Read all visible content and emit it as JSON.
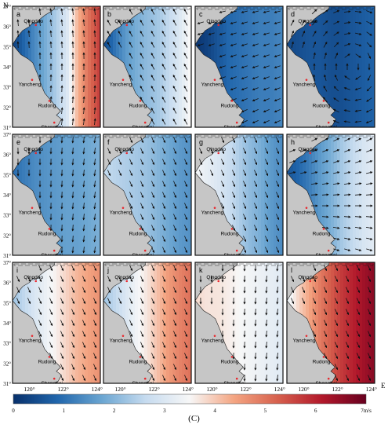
{
  "axes": {
    "north_label": "N",
    "east_label": "E",
    "lat_ticks": [
      "37°",
      "36°",
      "35°",
      "34°",
      "33°",
      "32°",
      "31°"
    ],
    "lon_ticks": [
      "120°",
      "122°",
      "124°"
    ],
    "lat_range": [
      31,
      37
    ],
    "lon_range": [
      119,
      124.2
    ]
  },
  "places": [
    {
      "name": "Qingdao",
      "lon": 120.38,
      "lat": 36.07
    },
    {
      "name": "Yancheng",
      "lon": 120.16,
      "lat": 33.35
    },
    {
      "name": "Rudong",
      "lon": 121.18,
      "lat": 32.31
    },
    {
      "name": "Shanghai",
      "lon": 121.47,
      "lat": 31.23
    }
  ],
  "panels": [
    {
      "label": "a",
      "speed": [
        0.35,
        0.9,
        1.4,
        1.9,
        2.4,
        3.0,
        4.2,
        5.0,
        5.6
      ],
      "flow": "N"
    },
    {
      "label": "b",
      "speed": [
        0.5,
        1.1,
        1.6,
        1.9,
        2.1,
        2.3,
        2.6,
        3.0,
        3.5
      ],
      "flow": "NW"
    },
    {
      "label": "c",
      "speed": [
        0.1,
        0.3,
        0.6,
        0.9,
        1.0,
        1.1,
        1.2,
        1.2,
        1.3
      ],
      "flow": "W"
    },
    {
      "label": "d",
      "speed": [
        0.4,
        0.5,
        0.6,
        0.6,
        0.5,
        0.5,
        0.6,
        0.7,
        0.8
      ],
      "flow": "CYC"
    },
    {
      "label": "e",
      "speed": [
        1.0,
        1.2,
        1.4,
        1.5,
        1.6,
        1.7,
        1.7,
        1.8,
        1.9
      ],
      "flow": "S"
    },
    {
      "label": "f",
      "speed": [
        2.6,
        2.5,
        2.4,
        2.3,
        2.2,
        2.0,
        1.8,
        1.6,
        1.5
      ],
      "flow": "SE"
    },
    {
      "label": "g",
      "speed": [
        3.4,
        3.2,
        3.0,
        2.7,
        2.4,
        2.1,
        1.9,
        1.6,
        1.4
      ],
      "flow": "SE"
    },
    {
      "label": "h",
      "speed": [
        0.6,
        0.9,
        1.2,
        1.6,
        1.9,
        2.3,
        2.6,
        2.9,
        3.1
      ],
      "flow": "NE"
    },
    {
      "label": "i",
      "speed": [
        2.3,
        2.6,
        3.0,
        3.3,
        3.6,
        3.9,
        4.2,
        4.4,
        4.6
      ],
      "flow": "SE"
    },
    {
      "label": "j",
      "speed": [
        2.3,
        2.6,
        3.0,
        3.4,
        3.7,
        4.1,
        4.5,
        4.8,
        5.0
      ],
      "flow": "SE"
    },
    {
      "label": "k",
      "speed": [
        3.8,
        3.7,
        3.7,
        3.6,
        3.5,
        3.4,
        3.3,
        3.2,
        3.1
      ],
      "flow": "S"
    },
    {
      "label": "l",
      "speed": [
        3.3,
        3.9,
        4.4,
        4.9,
        5.3,
        5.7,
        6.0,
        6.3,
        6.6
      ],
      "flow": "SE"
    }
  ],
  "colorbar": {
    "ticks": [
      "0",
      "1",
      "2",
      "3",
      "4",
      "5",
      "6",
      "7m/s"
    ],
    "min": 0,
    "max": 7,
    "colors": [
      "#08306b",
      "#2166ac",
      "#6aa5d1",
      "#c6dbef",
      "#f7f7f7",
      "#f4a582",
      "#d6604d",
      "#b2182b",
      "#67001f"
    ]
  },
  "caption": "(C)",
  "colors": {
    "land": "#c6c6c6",
    "coast": "#1a1a1a",
    "city": "#e8282e"
  }
}
